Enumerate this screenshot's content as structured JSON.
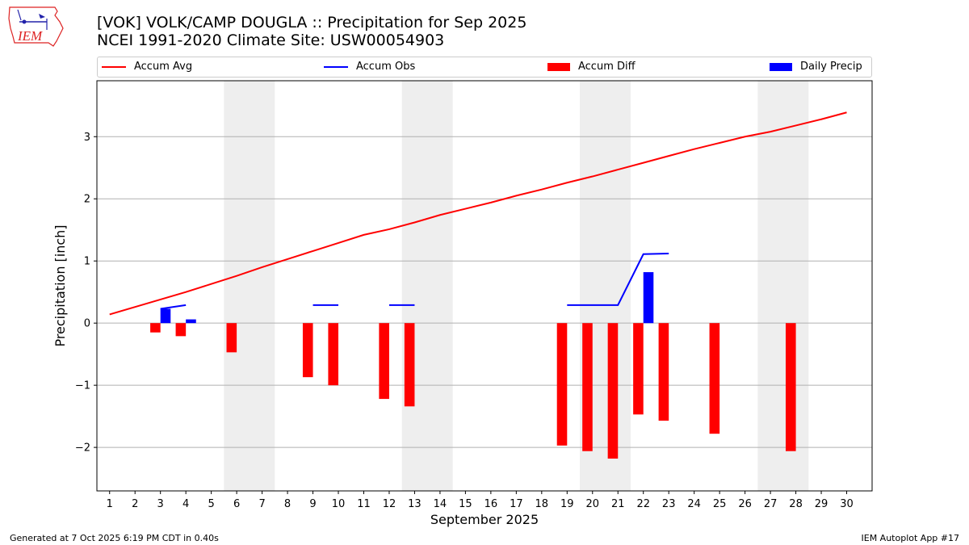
{
  "header": {
    "title_line1": "[VOK] VOLK/CAMP DOUGLA :: Precipitation for Sep 2025",
    "title_line2": "NCEI 1991-2020 Climate Site: USW00054903",
    "logo_text": "IEM"
  },
  "legend": {
    "accum_avg": "Accum Avg",
    "accum_obs": "Accum Obs",
    "accum_diff": "Accum Diff",
    "daily_precip": "Daily Precip"
  },
  "footer": {
    "generated": "Generated at 7 Oct 2025 6:19 PM CDT in 0.40s",
    "app": "IEM Autoplot App #17"
  },
  "colors": {
    "accum_avg": "#ff0000",
    "accum_obs": "#0000ff",
    "accum_diff": "#ff0000",
    "daily_precip": "#0000ff",
    "weekend_shade": "#eeeeee",
    "grid": "#b0b0b0"
  },
  "chart_data": {
    "type": "bar",
    "title": "[VOK] VOLK/CAMP DOUGLA :: Precipitation for Sep 2025",
    "subtitle": "NCEI 1991-2020 Climate Site: USW00054903",
    "xlabel": "September 2025",
    "ylabel": "Precipitation [inch]",
    "xlim": [
      0.5,
      31
    ],
    "ylim": [
      -2.7,
      3.9
    ],
    "x_ticks": [
      1,
      2,
      3,
      4,
      5,
      6,
      7,
      8,
      9,
      10,
      11,
      12,
      13,
      14,
      15,
      16,
      17,
      18,
      19,
      20,
      21,
      22,
      23,
      24,
      25,
      26,
      27,
      28,
      29,
      30
    ],
    "y_ticks": [
      -2,
      -1,
      0,
      1,
      2,
      3
    ],
    "y_tick_labels": [
      "−2",
      "−1",
      "0",
      "1",
      "2",
      "3"
    ],
    "grid": "horizontal",
    "legend_position": "top",
    "weekend_shading": [
      [
        5.5,
        7.5
      ],
      [
        12.5,
        14.5
      ],
      [
        19.5,
        21.5
      ],
      [
        26.5,
        28.5
      ]
    ],
    "series": [
      {
        "name": "Accum Avg",
        "kind": "line",
        "x": [
          1,
          2,
          3,
          4,
          5,
          6,
          7,
          8,
          9,
          10,
          11,
          12,
          13,
          14,
          15,
          16,
          17,
          18,
          19,
          20,
          21,
          22,
          23,
          24,
          25,
          26,
          27,
          28,
          29,
          30
        ],
        "values": [
          0.14,
          0.26,
          0.38,
          0.5,
          0.63,
          0.76,
          0.9,
          1.03,
          1.16,
          1.29,
          1.42,
          1.51,
          1.62,
          1.74,
          1.84,
          1.94,
          2.05,
          2.15,
          2.26,
          2.36,
          2.47,
          2.58,
          2.69,
          2.8,
          2.9,
          3.0,
          3.08,
          3.18,
          3.28,
          3.39
        ]
      },
      {
        "name": "Accum Obs",
        "kind": "line",
        "segments": [
          {
            "x": [
              3,
              4
            ],
            "values": [
              0.23,
              0.29
            ]
          },
          {
            "x": [
              9,
              10
            ],
            "values": [
              0.29,
              0.29
            ]
          },
          {
            "x": [
              12,
              13
            ],
            "values": [
              0.29,
              0.29
            ]
          },
          {
            "x": [
              19,
              20,
              21,
              22,
              23
            ],
            "values": [
              0.29,
              0.29,
              0.29,
              1.11,
              1.12
            ]
          }
        ]
      },
      {
        "name": "Accum Diff",
        "kind": "bar",
        "x": [
          3,
          4,
          6,
          9,
          10,
          12,
          13,
          19,
          20,
          21,
          22,
          23,
          25,
          28
        ],
        "values": [
          -0.15,
          -0.21,
          -0.47,
          -0.87,
          -1.0,
          -1.22,
          -1.34,
          -1.97,
          -2.06,
          -2.18,
          -1.47,
          -1.57,
          -1.78,
          -2.06
        ]
      },
      {
        "name": "Daily Precip",
        "kind": "bar",
        "x": [
          3,
          4,
          22
        ],
        "values": [
          0.23,
          0.06,
          0.82
        ]
      }
    ]
  }
}
